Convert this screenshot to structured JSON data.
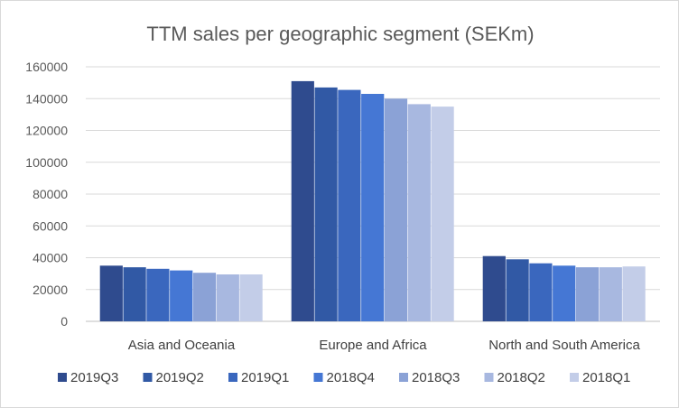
{
  "chart_data": {
    "type": "bar",
    "title": "TTM sales per geographic segment (SEKm)",
    "xlabel": "",
    "ylabel": "",
    "ylim": [
      0,
      160000
    ],
    "yticks": [
      "0",
      "20000",
      "40000",
      "60000",
      "80000",
      "100000",
      "120000",
      "140000",
      "160000"
    ],
    "grid": "horizontal",
    "legend_position": "bottom",
    "categories": [
      "Asia and Oceania",
      "Europe and Africa",
      "North and South America"
    ],
    "series": [
      {
        "name": "2019Q3",
        "color": "#2f4b8e",
        "values": [
          35000,
          151000,
          41000
        ]
      },
      {
        "name": "2019Q2",
        "color": "#3159a5",
        "values": [
          34000,
          147000,
          39000
        ]
      },
      {
        "name": "2019Q1",
        "color": "#3a67be",
        "values": [
          33000,
          145500,
          36500
        ]
      },
      {
        "name": "2018Q4",
        "color": "#4577d4",
        "values": [
          32000,
          143000,
          35000
        ]
      },
      {
        "name": "2018Q3",
        "color": "#8ba2d6",
        "values": [
          30500,
          140000,
          34000
        ]
      },
      {
        "name": "2018Q2",
        "color": "#a8b8e0",
        "values": [
          29500,
          136500,
          34000
        ]
      },
      {
        "name": "2018Q1",
        "color": "#c3cde8",
        "values": [
          29500,
          135000,
          34500
        ]
      }
    ]
  }
}
